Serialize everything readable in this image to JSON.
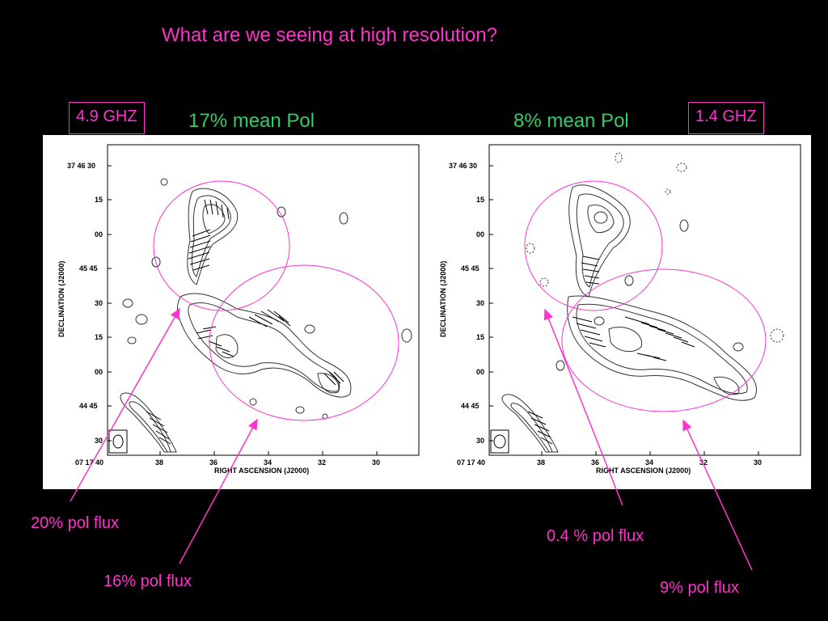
{
  "slide_title": "What are we seeing at high resolution?",
  "left_panel": {
    "frequency": "4.9 GHZ",
    "mean_pol": "17% mean Pol",
    "callouts": [
      "20% pol flux",
      "16% pol flux"
    ]
  },
  "right_panel": {
    "frequency": "1.4 GHZ",
    "mean_pol": "8% mean Pol",
    "callouts": [
      "0.4 % pol flux",
      "9% pol flux"
    ]
  },
  "axes": {
    "ylabel": "DECLINATION (J2000)",
    "xlabel": "RIGHT ASCENSION (J2000)",
    "y_ticks": [
      "37 46 30",
      "15",
      "00",
      "45 45",
      "30",
      "15",
      "00",
      "44 45",
      "30"
    ],
    "x_ticks": [
      "07 17 40",
      "38",
      "36",
      "34",
      "32",
      "30"
    ]
  },
  "colors": {
    "accent": "#ff33cc",
    "green": "#33cc66",
    "background": "#000000"
  }
}
